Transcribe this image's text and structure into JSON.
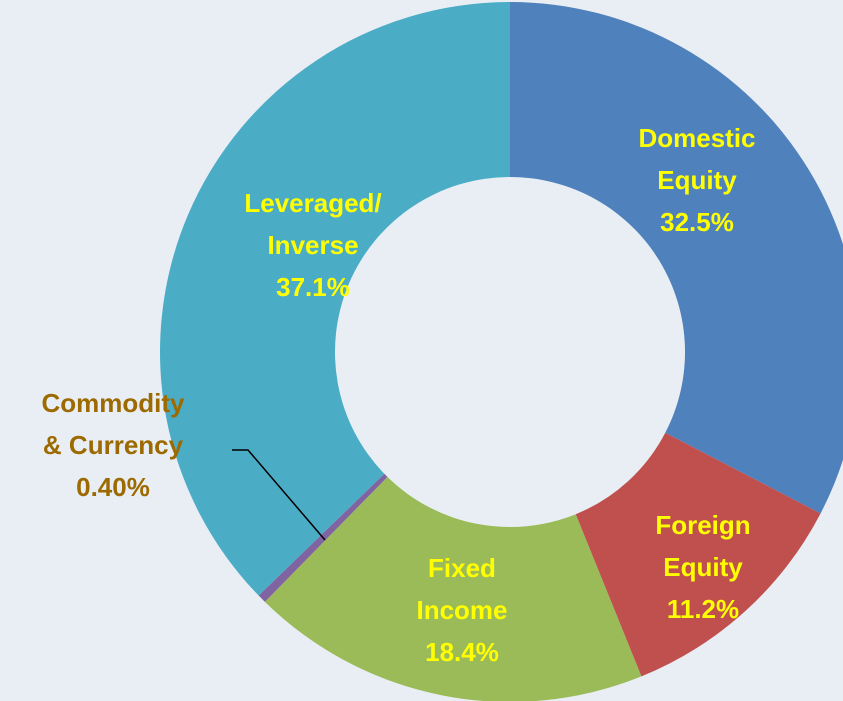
{
  "chart_data": {
    "type": "donut",
    "categories": [
      "Domestic\nEquity",
      "Foreign\nEquity",
      "Fixed\nIncome",
      "Commodity\n& Currency",
      "Leveraged/\nInverse"
    ],
    "values": [
      32.5,
      11.2,
      18.4,
      0.4,
      37.1
    ],
    "value_labels": [
      "32.5%",
      "11.2%",
      "18.4%",
      "0.40%",
      "37.1%"
    ],
    "colors": [
      "#4f81bd",
      "#c0504d",
      "#9bbb59",
      "#8064a2",
      "#4bacc6"
    ],
    "label_colors": [
      "#ffff00",
      "#ffff00",
      "#ffff00",
      "#9c6a00",
      "#ffff00"
    ]
  }
}
